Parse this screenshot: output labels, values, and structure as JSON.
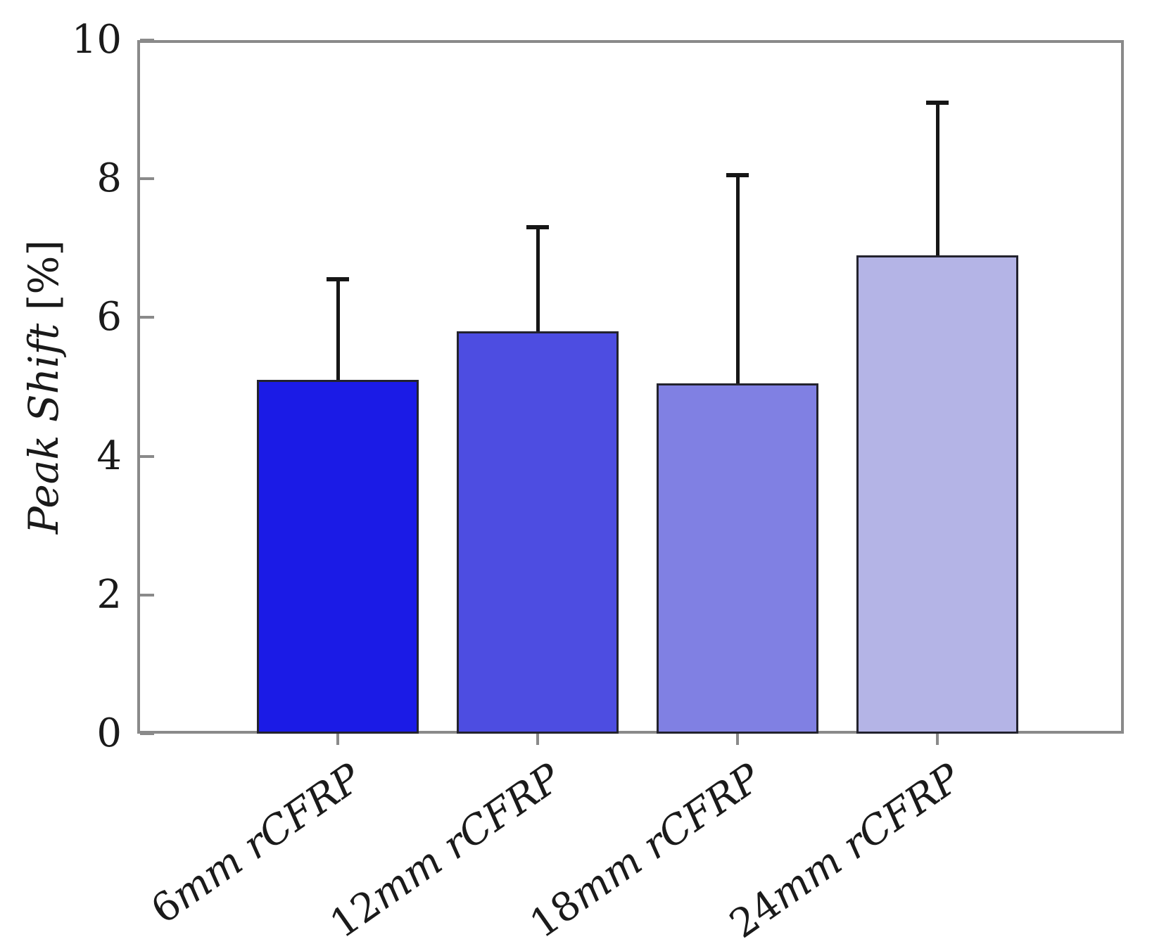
{
  "chart_data": {
    "type": "bar",
    "categories": [
      "6mm rCFRP",
      "12mm rCFRP",
      "18mm rCFRP",
      "24mm rCFRP"
    ],
    "values": [
      5.1,
      5.8,
      5.05,
      6.9
    ],
    "errors_plus": [
      1.45,
      1.5,
      3.0,
      2.2
    ],
    "error_bar_tops": [
      6.55,
      7.3,
      8.05,
      9.1
    ],
    "bar_colors": [
      "#1b1be6",
      "#4d4de1",
      "#8080e3",
      "#b4b4e6"
    ],
    "bar_edge_color": "#23232e",
    "error_bar_color": "#161616",
    "axis_box_color": "#8a8a8a",
    "title": "",
    "xlabel": "",
    "ylabel": "Peak Shift [%]",
    "ylim": [
      0,
      10
    ],
    "yticks": [
      0,
      2,
      4,
      6,
      8,
      10
    ],
    "grid": false,
    "legend": "none",
    "error_bars": "upper-only"
  }
}
